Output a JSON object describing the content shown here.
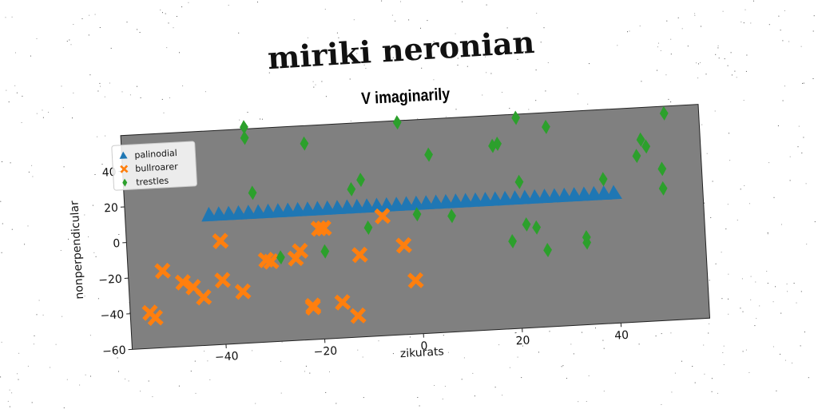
{
  "page_title": "miriki neronian",
  "colors": {
    "plot_bg": "#808080",
    "palinodial": "#1f77b4",
    "bullroarer": "#ff7f0e",
    "trestles": "#2ca02c"
  },
  "chart_data": {
    "type": "scatter",
    "title": "V imaginarily",
    "xlabel": "zikurats",
    "ylabel": "nonperpendicular",
    "xlim": [
      -59,
      58
    ],
    "ylim": [
      -60,
      60
    ],
    "xticks": [
      -40,
      -20,
      0,
      20,
      40
    ],
    "yticks": [
      -60,
      -40,
      -20,
      0,
      20,
      40
    ],
    "xtick_labels": [
      "−40",
      "−20",
      "0",
      "20",
      "40"
    ],
    "ytick_labels": [
      "−60",
      "−40",
      "−20",
      "0",
      "20",
      "40"
    ],
    "grid": false,
    "legend_position": "top-left",
    "series": [
      {
        "name": "palinodial",
        "marker": "triangle",
        "x": [
          -42,
          -40,
          -38,
          -36,
          -34,
          -32,
          -30,
          -28,
          -26,
          -24,
          -22,
          -20,
          -18,
          -16,
          -14,
          -12,
          -10,
          -8,
          -6,
          -4,
          -2,
          0,
          2,
          4,
          6,
          8,
          10,
          12,
          14,
          16,
          18,
          20,
          22,
          24,
          26,
          28,
          30,
          32,
          34,
          36,
          38,
          40
        ],
        "y": [
          13,
          13,
          13,
          13,
          13,
          13,
          13,
          13,
          13,
          13,
          13,
          13,
          13,
          13,
          13,
          13,
          13,
          13,
          13,
          13,
          13,
          13,
          13,
          13,
          13,
          13,
          13,
          13,
          13,
          13,
          13,
          13,
          13,
          13,
          13,
          13,
          13,
          13,
          13,
          13,
          13,
          13
        ]
      },
      {
        "name": "bullroarer",
        "marker": "x",
        "x": [
          -55,
          -54,
          -52,
          -48,
          -46,
          -44,
          -40,
          -40,
          -36,
          -31,
          -30,
          -25,
          -24,
          -22,
          -22,
          -20,
          -19,
          -16,
          -13,
          -12,
          -7,
          -3,
          -1
        ],
        "y": [
          -40,
          -43,
          -17,
          -24,
          -27,
          -33,
          -2,
          -24,
          -31,
          -14,
          -15,
          -14,
          -10,
          -42,
          -41,
          2,
          2,
          -40,
          -48,
          -14,
          7,
          -10,
          -30
        ]
      },
      {
        "name": "trestles",
        "marker": "diamond",
        "x": [
          -34,
          -34,
          -33,
          -28,
          -22,
          -19,
          -13,
          -11,
          -10,
          -3,
          0,
          3,
          7,
          16,
          17,
          19,
          21,
          21,
          22,
          24,
          26,
          27,
          34,
          34,
          38,
          45,
          46,
          47,
          50,
          50,
          51
        ],
        "y": [
          61,
          55,
          24,
          -13,
          50,
          -11,
          23,
          28,
          1,
          59,
          7,
          40,
          5,
          43,
          44,
          -11,
          58,
          22,
          -2,
          -4,
          -17,
          52,
          -14,
          -11,
          21,
          33,
          42,
          38,
          25,
          14,
          56
        ]
      }
    ]
  }
}
